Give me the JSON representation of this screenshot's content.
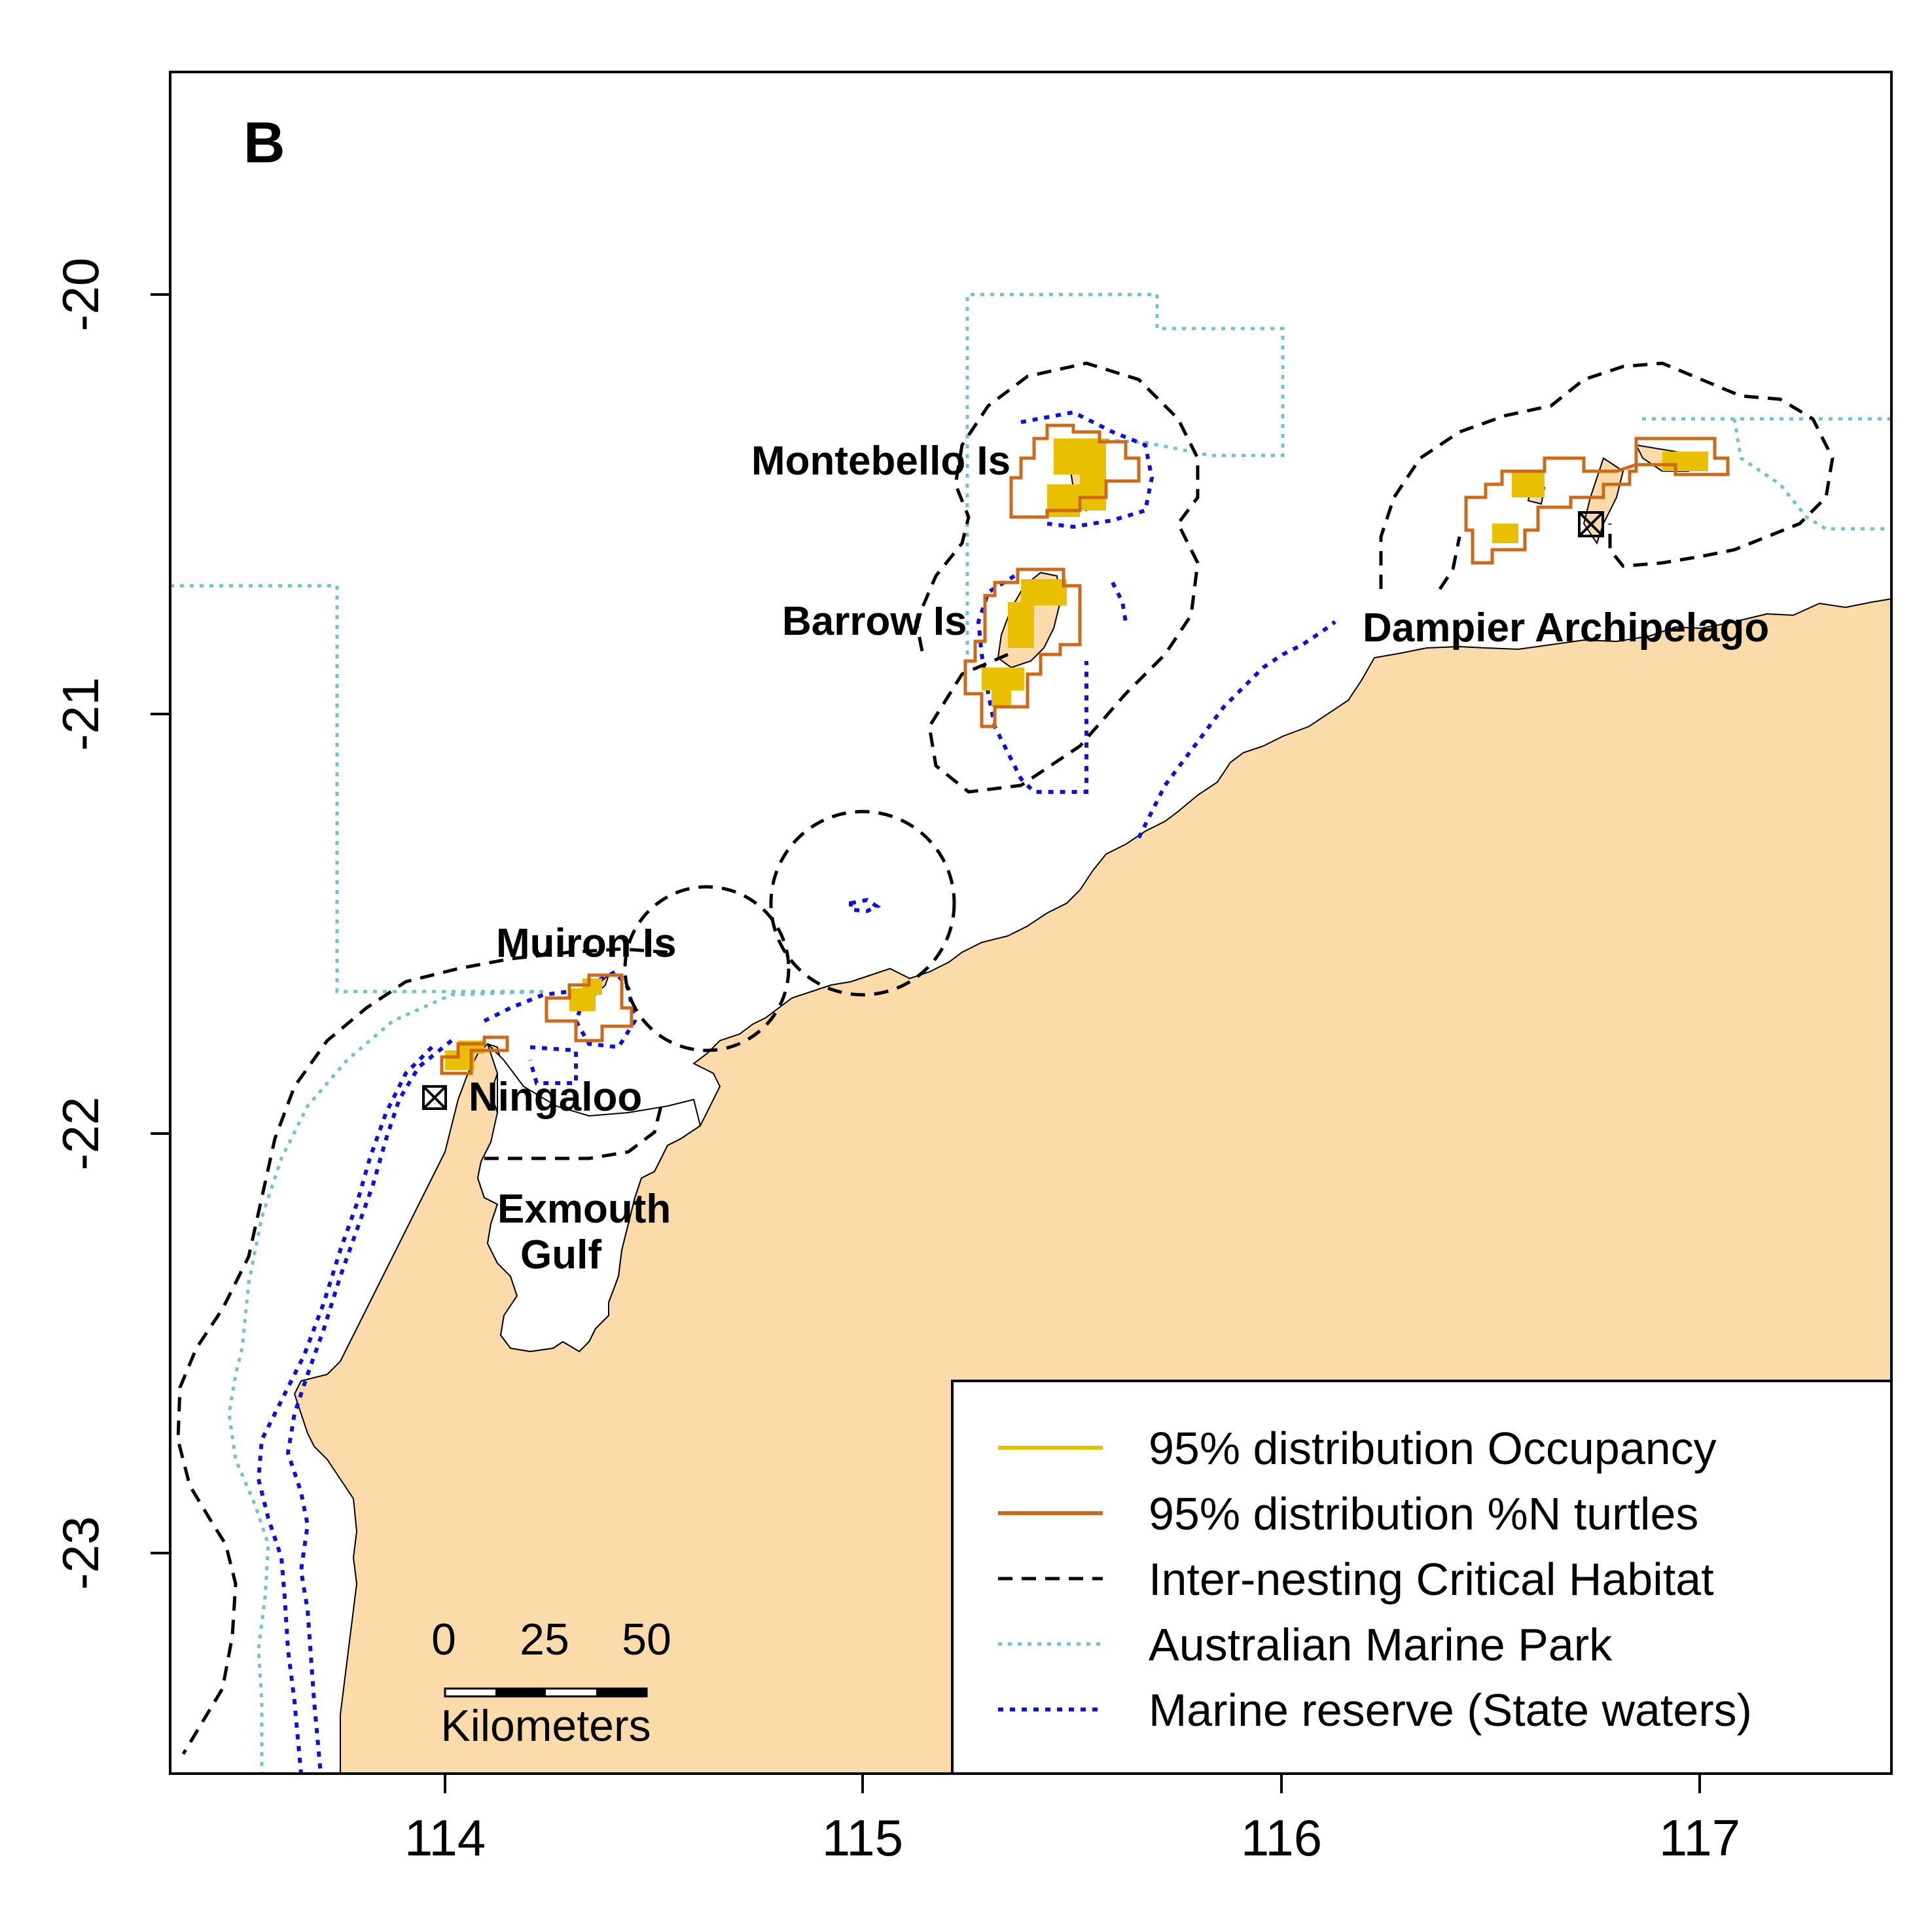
{
  "panel_label": "B",
  "axes": {
    "x_ticks": [
      "114",
      "115",
      "116",
      "117"
    ],
    "y_ticks": [
      "-20",
      "-21",
      "-22",
      "-23"
    ]
  },
  "places": {
    "montebello": "Montebello Is",
    "barrow": "Barrow Is",
    "dampier": "Dampier Archipelago",
    "muiron": "Muiron Is",
    "ningaloo": "Ningaloo",
    "exmouth_1": "Exmouth",
    "exmouth_2": "Gulf"
  },
  "scale_bar": {
    "labels": [
      "0",
      "25",
      "50"
    ],
    "unit": "Kilometers"
  },
  "legend": {
    "items": [
      {
        "label": "95% distribution Occupancy",
        "color": "#e8c000",
        "style": "solid"
      },
      {
        "label": "95% distribution %N turtles",
        "color": "#cc6a1a",
        "style": "solid"
      },
      {
        "label": "Inter-nesting Critical Habitat",
        "color": "#000000",
        "style": "dashed"
      },
      {
        "label": "Australian Marine Park",
        "color": "#6cc4cc",
        "style": "dotted"
      },
      {
        "label": "Marine reserve (State waters)",
        "color": "#1010dd",
        "style": "dotted"
      }
    ]
  },
  "colors": {
    "land": "#fbdbaa",
    "occupancy": "#e8c000",
    "turtles": "#cc6a1a",
    "critical_habitat": "#000000",
    "marine_park": "#6cc4cc",
    "marine_reserve": "#1010dd"
  }
}
